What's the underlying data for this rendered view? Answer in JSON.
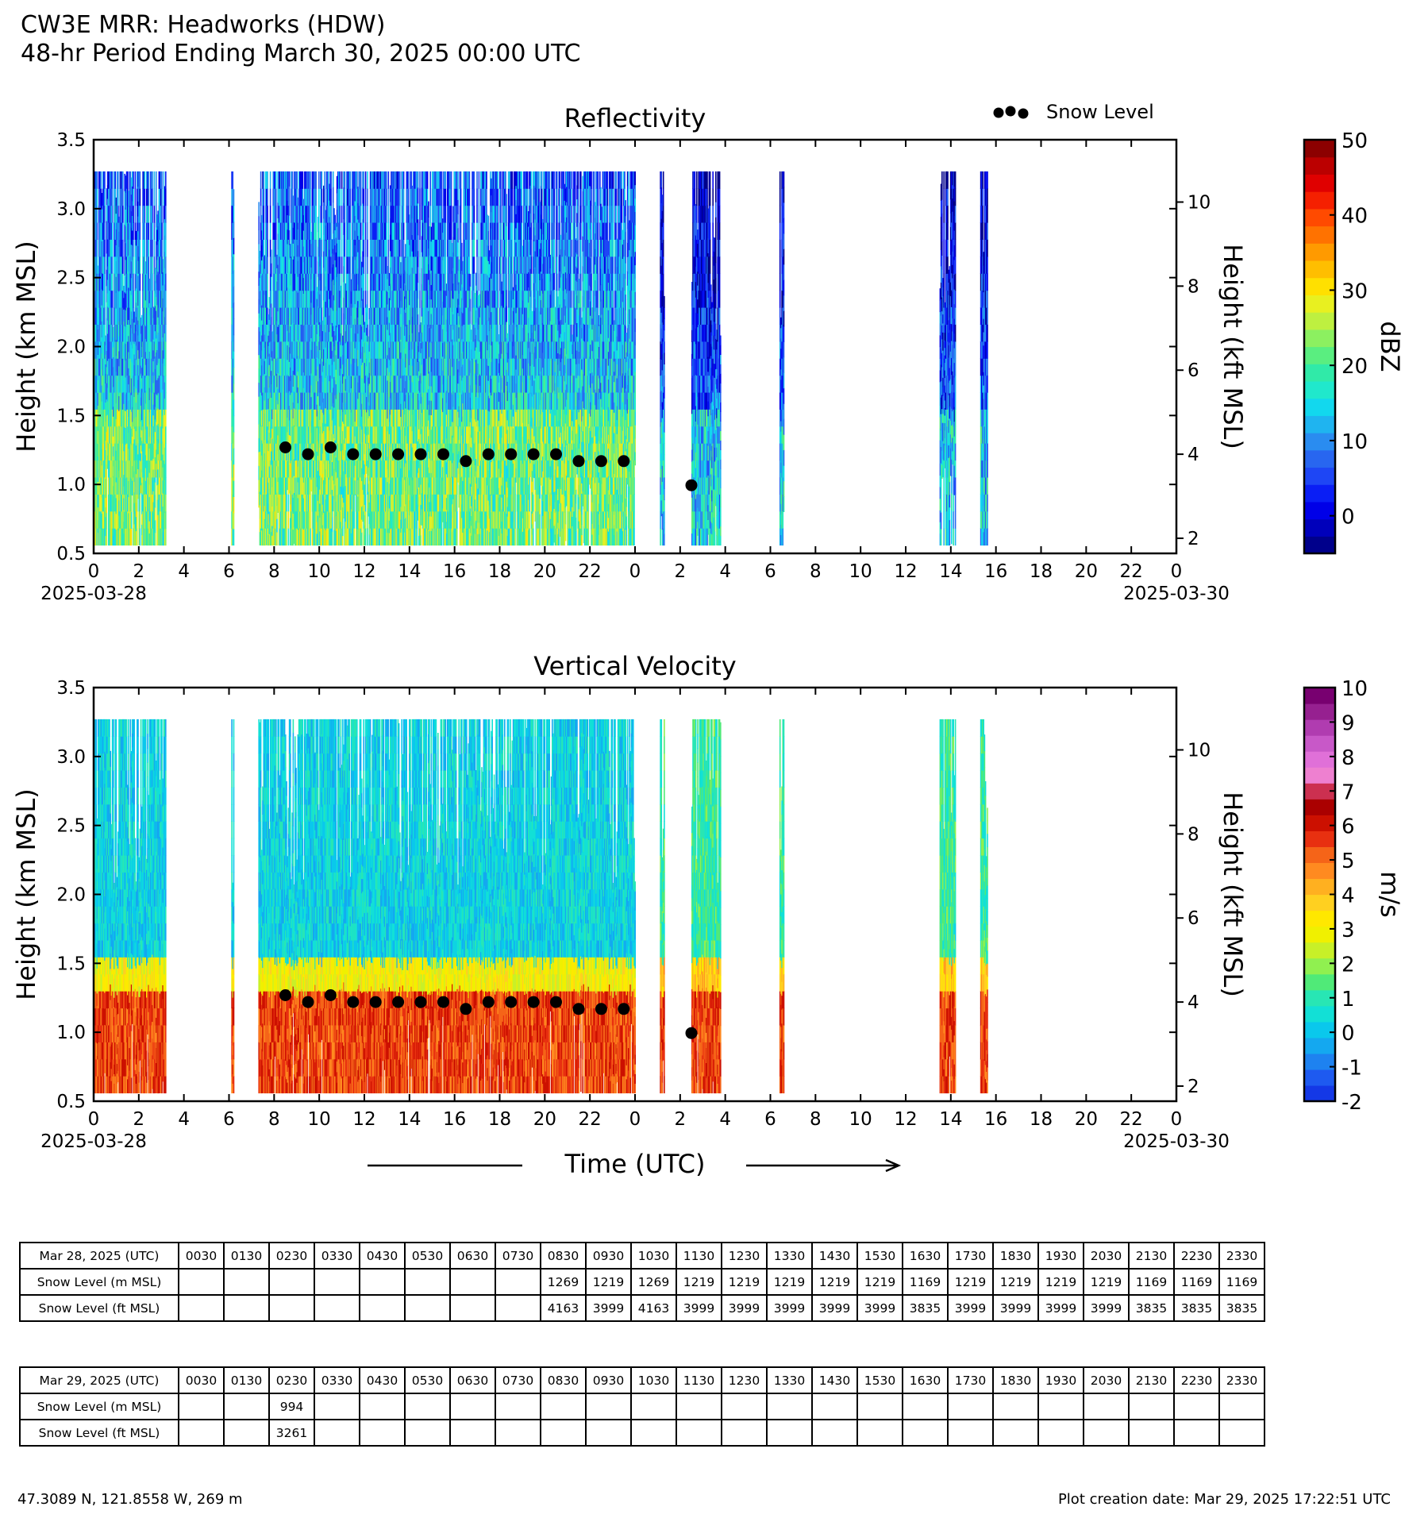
{
  "header": {
    "title": "CW3E MRR: Headworks (HDW)",
    "subtitle": "48-hr Period Ending March 30, 2025 00:00 UTC"
  },
  "legend": {
    "snow_level_label": "Snow Level"
  },
  "x_axis": {
    "tick_labels": [
      "0",
      "2",
      "4",
      "6",
      "8",
      "10",
      "12",
      "14",
      "16",
      "18",
      "20",
      "22",
      "0",
      "2",
      "4",
      "6",
      "8",
      "10",
      "12",
      "14",
      "16",
      "18",
      "20",
      "22",
      "0"
    ],
    "start_date": "2025-03-28",
    "end_date": "2025-03-30",
    "xlabel": "Time (UTC)"
  },
  "chart_data": [
    {
      "type": "heatmap",
      "title": "Reflectivity",
      "ylabel": "Height (km MSL)",
      "ylabel_right": "Height (kft MSL)",
      "ylim": [
        0.5,
        3.5
      ],
      "y_ticks": [
        "0.5",
        "1.0",
        "1.5",
        "2.0",
        "2.5",
        "3.0",
        "3.5"
      ],
      "y_right_ticks": [
        "2",
        "4",
        "6",
        "8",
        "10"
      ],
      "xlim_hours": [
        0,
        48
      ],
      "colorbar": {
        "label": "dBZ",
        "ticks": [
          "0",
          "10",
          "20",
          "30",
          "40",
          "50"
        ],
        "range": [
          -5,
          50
        ],
        "colors": [
          "#00008b",
          "#0000bb",
          "#0000e8",
          "#0a1ef5",
          "#1e46f5",
          "#2866f0",
          "#2a8cf0",
          "#1fb4f0",
          "#12d8ee",
          "#20e8cc",
          "#30eaa8",
          "#5aee80",
          "#8cf060",
          "#bef040",
          "#e8f020",
          "#ffe000",
          "#ffbe00",
          "#ff9a00",
          "#ff7200",
          "#ff4a00",
          "#f52000",
          "#e00000",
          "#bb0000",
          "#8c0000"
        ]
      },
      "echo_periods_hours": [
        [
          0,
          3.2
        ],
        [
          6.1,
          6.2
        ],
        [
          7.3,
          24
        ],
        [
          25.1,
          25.3
        ],
        [
          26.5,
          27.8
        ],
        [
          30.4,
          30.6
        ],
        [
          37.5,
          38.2
        ],
        [
          39.3,
          39.6
        ]
      ],
      "snow_level": {
        "time_hours": [
          8.5,
          9.5,
          10.5,
          11.5,
          12.5,
          13.5,
          14.5,
          15.5,
          16.5,
          17.5,
          18.5,
          19.5,
          20.5,
          21.5,
          22.5,
          23.5,
          26.5
        ],
        "height_km": [
          1.269,
          1.219,
          1.269,
          1.219,
          1.219,
          1.219,
          1.219,
          1.219,
          1.169,
          1.219,
          1.219,
          1.219,
          1.219,
          1.169,
          1.169,
          1.169,
          0.994
        ]
      }
    },
    {
      "type": "heatmap",
      "title": "Vertical Velocity",
      "ylabel": "Height (km MSL)",
      "ylabel_right": "Height (kft MSL)",
      "ylim": [
        0.5,
        3.5
      ],
      "y_ticks": [
        "0.5",
        "1.0",
        "1.5",
        "2.0",
        "2.5",
        "3.0",
        "3.5"
      ],
      "y_right_ticks": [
        "2",
        "4",
        "6",
        "8",
        "10"
      ],
      "xlim_hours": [
        0,
        48
      ],
      "colorbar": {
        "label": "m/s",
        "ticks": [
          "-2",
          "-1",
          "0",
          "1",
          "2",
          "3",
          "4",
          "5",
          "6",
          "7",
          "8",
          "9",
          "10"
        ],
        "range": [
          -2,
          10
        ],
        "colors": [
          "#1438e6",
          "#1e5af0",
          "#1e82f0",
          "#14a8f0",
          "#0ac8ec",
          "#12e0d6",
          "#28e6b4",
          "#50ea78",
          "#90f050",
          "#c8f028",
          "#f0f000",
          "#ffe800",
          "#ffd020",
          "#ffb020",
          "#ff8a20",
          "#f56418",
          "#e83010",
          "#cc1000",
          "#aa0000",
          "#cc3050",
          "#ee80d0",
          "#e070d8",
          "#c858c8",
          "#b03cb0",
          "#962090",
          "#780070"
        ]
      },
      "echo_periods_hours": [
        [
          0,
          3.2
        ],
        [
          6.1,
          6.2
        ],
        [
          7.3,
          24
        ],
        [
          25.1,
          25.3
        ],
        [
          26.5,
          27.8
        ],
        [
          30.4,
          30.6
        ],
        [
          37.5,
          38.2
        ],
        [
          39.3,
          39.6
        ]
      ],
      "snow_level": {
        "time_hours": [
          8.5,
          9.5,
          10.5,
          11.5,
          12.5,
          13.5,
          14.5,
          15.5,
          16.5,
          17.5,
          18.5,
          19.5,
          20.5,
          21.5,
          22.5,
          23.5,
          26.5
        ],
        "height_km": [
          1.269,
          1.219,
          1.269,
          1.219,
          1.219,
          1.219,
          1.219,
          1.219,
          1.169,
          1.219,
          1.219,
          1.219,
          1.219,
          1.169,
          1.169,
          1.169,
          0.994
        ]
      }
    },
    {
      "type": "table",
      "rows": [
        {
          "label": "Mar 28, 2025 (UTC)",
          "cells": [
            "0030",
            "0130",
            "0230",
            "0330",
            "0430",
            "0530",
            "0630",
            "0730",
            "0830",
            "0930",
            "1030",
            "1130",
            "1230",
            "1330",
            "1430",
            "1530",
            "1630",
            "1730",
            "1830",
            "1930",
            "2030",
            "2130",
            "2230",
            "2330"
          ]
        },
        {
          "label": "Snow Level (m MSL)",
          "cells": [
            "",
            "",
            "",
            "",
            "",
            "",
            "",
            "",
            "1269",
            "1219",
            "1269",
            "1219",
            "1219",
            "1219",
            "1219",
            "1219",
            "1169",
            "1219",
            "1219",
            "1219",
            "1219",
            "1169",
            "1169",
            "1169"
          ]
        },
        {
          "label": "Snow Level (ft MSL)",
          "cells": [
            "",
            "",
            "",
            "",
            "",
            "",
            "",
            "",
            "4163",
            "3999",
            "4163",
            "3999",
            "3999",
            "3999",
            "3999",
            "3999",
            "3835",
            "3999",
            "3999",
            "3999",
            "3999",
            "3835",
            "3835",
            "3835"
          ]
        }
      ]
    },
    {
      "type": "table",
      "rows": [
        {
          "label": "Mar 29, 2025 (UTC)",
          "cells": [
            "0030",
            "0130",
            "0230",
            "0330",
            "0430",
            "0530",
            "0630",
            "0730",
            "0830",
            "0930",
            "1030",
            "1130",
            "1230",
            "1330",
            "1430",
            "1530",
            "1630",
            "1730",
            "1830",
            "1930",
            "2030",
            "2130",
            "2230",
            "2330"
          ]
        },
        {
          "label": "Snow Level (m MSL)",
          "cells": [
            "",
            "",
            "994",
            "",
            "",
            "",
            "",
            "",
            "",
            "",
            "",
            "",
            "",
            "",
            "",
            "",
            "",
            "",
            "",
            "",
            "",
            "",
            "",
            ""
          ]
        },
        {
          "label": "Snow Level (ft MSL)",
          "cells": [
            "",
            "",
            "3261",
            "",
            "",
            "",
            "",
            "",
            "",
            "",
            "",
            "",
            "",
            "",
            "",
            "",
            "",
            "",
            "",
            "",
            "",
            "",
            "",
            ""
          ]
        }
      ]
    }
  ],
  "footer": {
    "location": "47.3089 N, 121.8558 W, 269 m",
    "creation_date": "Plot creation date: Mar 29, 2025 17:22:51 UTC"
  }
}
